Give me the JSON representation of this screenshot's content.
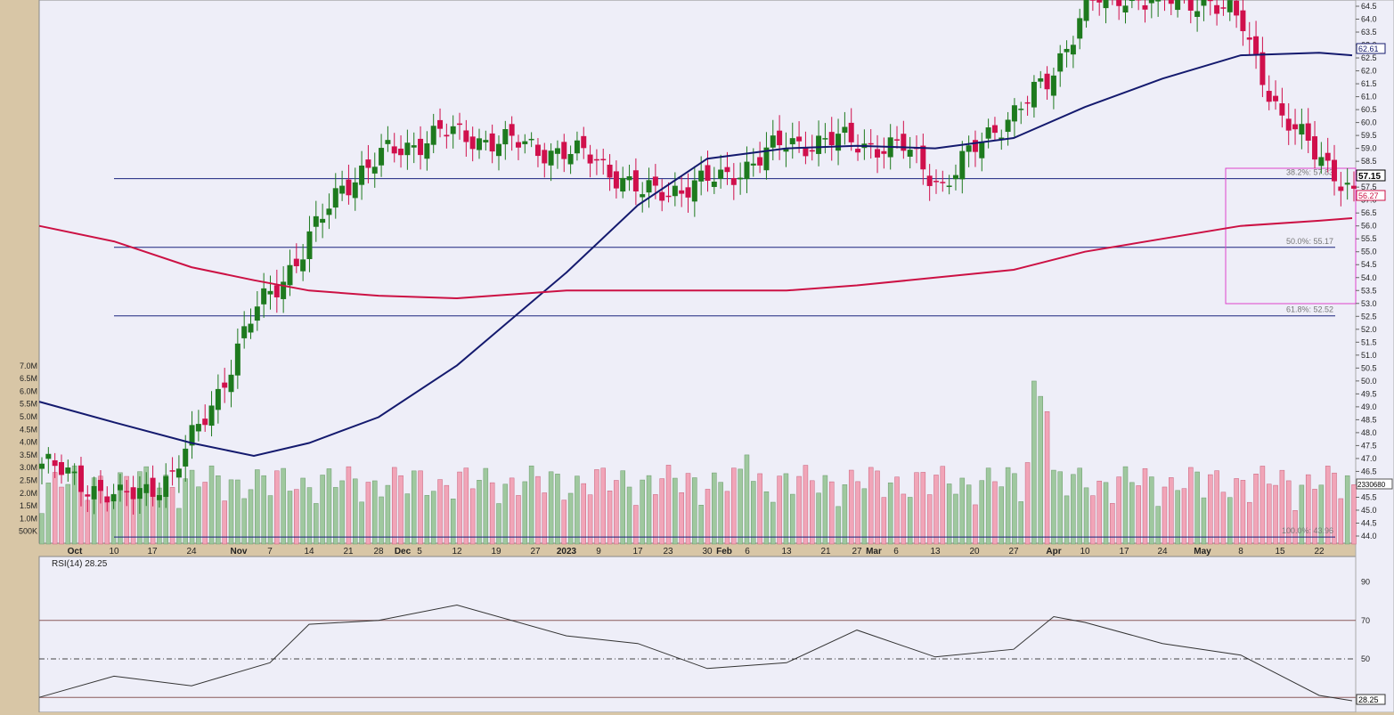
{
  "price_panel": {
    "y_ticks": [
      "64.5",
      "64.0",
      "63.5",
      "63.0",
      "62.5",
      "62.0",
      "61.5",
      "61.0",
      "60.5",
      "60.0",
      "59.5",
      "59.0",
      "58.5",
      "58.0",
      "57.5",
      "57.0",
      "56.5",
      "56.0",
      "55.5",
      "55.0",
      "54.5",
      "54.0",
      "53.5",
      "53.0",
      "52.5",
      "52.0",
      "51.5",
      "51.0",
      "50.5",
      "50.0",
      "49.5",
      "49.0",
      "48.5",
      "48.0",
      "47.5",
      "47.0",
      "46.5",
      "46.0",
      "45.5",
      "45.0",
      "44.5",
      "44.0"
    ],
    "last_price_label": "57.15",
    "ma_blue_label": "62.61",
    "ma_red_label": "56.27",
    "volume_last_label": "2330680",
    "fib_levels": [
      {
        "label": "38.2%: 57.83",
        "price": 57.83
      },
      {
        "label": "50.0%: 55.17",
        "price": 55.17
      },
      {
        "label": "61.8%: 52.52",
        "price": 52.52
      },
      {
        "label": "100.0%: 43.96",
        "price": 43.96
      }
    ],
    "colors": {
      "up": "#1e7a1e",
      "down": "#d0104c",
      "ma_short": "#141a6e",
      "ma_long": "#cc1144",
      "fib": "#1a237e",
      "highlight": "#dd44cc",
      "panel": "#eeeef8"
    }
  },
  "volume_panel": {
    "y_ticks": [
      "7.0M",
      "6.5M",
      "6.0M",
      "5.5M",
      "5.0M",
      "4.5M",
      "4.0M",
      "3.5M",
      "3.0M",
      "2.5M",
      "2.0M",
      "1.5M",
      "1.0M",
      "500K"
    ]
  },
  "x_axis": {
    "labels": [
      "Oct",
      "10",
      "17",
      "24",
      "Nov",
      "7",
      "14",
      "21",
      "28",
      "Dec",
      "5",
      "12",
      "19",
      "27",
      "2023",
      "9",
      "17",
      "23",
      "30",
      "Feb",
      "6",
      "13",
      "21",
      "27",
      "Mar",
      "6",
      "13",
      "20",
      "27",
      "Apr",
      "10",
      "17",
      "24",
      "May",
      "8",
      "15",
      "22"
    ]
  },
  "rsi_panel": {
    "title": "RSI(14) 28.25",
    "y_ticks": [
      "90",
      "70",
      "50",
      "28.25"
    ],
    "levels": [
      70,
      50,
      30
    ]
  },
  "chart_data": [
    {
      "type": "line",
      "xlabel": "",
      "ylabel": "",
      "ylim": [
        43.9,
        64.8
      ],
      "x": [
        "Sep 26",
        "Oct 10",
        "Oct 24",
        "Nov 3",
        "Nov 14",
        "Nov 28",
        "Dec 12",
        "Jan 3",
        "Jan 17",
        "Jan 30",
        "Feb 13",
        "Feb 27",
        "Mar 13",
        "Mar 27",
        "Apr 10",
        "Apr 24",
        "May 8",
        "May 22",
        "May 26"
      ],
      "series": [
        {
          "name": "",
          "values": [
            49.2,
            48.4,
            47.6,
            47.1,
            47.6,
            48.6,
            50.6,
            54.2,
            56.8,
            58.6,
            59.0,
            59.1,
            59.0,
            59.4,
            60.6,
            61.7,
            62.6,
            62.7,
            62.6
          ]
        },
        {
          "name": "",
          "values": [
            56.0,
            55.4,
            54.4,
            53.9,
            53.5,
            53.3,
            53.2,
            53.5,
            53.5,
            53.5,
            53.5,
            53.7,
            54.0,
            54.3,
            55.0,
            55.5,
            56.0,
            56.2,
            56.3
          ]
        }
      ],
      "annotations": [
        "38.2%: 57.83",
        "50.0%: 55.17",
        "61.8%: 52.52",
        "100.0%: 43.96"
      ]
    },
    {
      "type": "bar",
      "xlabel": "",
      "ylabel": "",
      "ylim": [
        0,
        7.5
      ],
      "categories": [
        "Sep 26",
        "Oct 10",
        "Oct 24",
        "Nov 7",
        "Nov 28",
        "Dec 12",
        "Jan 3",
        "Jan 17",
        "Jan 30",
        "Feb 13",
        "Feb 27",
        "Mar 13",
        "Mar 27",
        "Apr 10",
        "Apr 12",
        "Apr 24",
        "May 8",
        "May 22",
        "May 26"
      ],
      "values": [
        2.6,
        1.5,
        1.4,
        2.1,
        1.9,
        1.2,
        1.3,
        2.4,
        3.5,
        1.0,
        1.1,
        2.0,
        1.6,
        3.0,
        6.5,
        2.9,
        3.5,
        1.8,
        2.33
      ]
    },
    {
      "type": "line",
      "xlabel": "",
      "ylabel": "",
      "ylim": [
        25,
        100
      ],
      "x": [
        "Sep 26",
        "Oct 10",
        "Oct 24",
        "Nov 7",
        "Nov 14",
        "Nov 28",
        "Dec 12",
        "Jan 3",
        "Jan 17",
        "Jan 30",
        "Feb 13",
        "Feb 27",
        "Mar 13",
        "Mar 27",
        "Apr 3",
        "Apr 12",
        "Apr 24",
        "May 8",
        "May 22",
        "May 26"
      ],
      "series": [
        {
          "name": "",
          "values": [
            30,
            41,
            36,
            48,
            68,
            70,
            78,
            62,
            58,
            45,
            48,
            65,
            51,
            55,
            72,
            69,
            58,
            52,
            31,
            28.25
          ]
        }
      ]
    }
  ]
}
